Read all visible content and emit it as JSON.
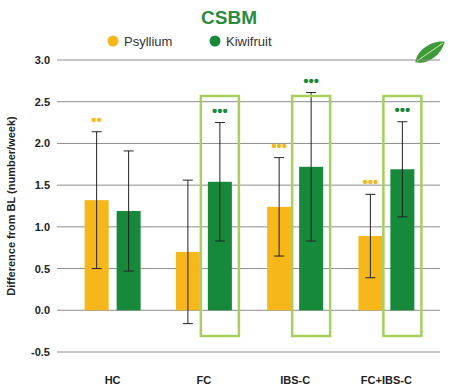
{
  "chart_data": {
    "type": "bar",
    "title": "CSBM",
    "y_label": "Difference from BL (number/week)",
    "categories": [
      "HC",
      "FC",
      "IBS-C",
      "FC+IBS-C"
    ],
    "series": [
      {
        "name": "Psyllium",
        "color": "#f6b71b",
        "values": [
          1.32,
          0.7,
          1.24,
          0.89
        ],
        "errors": [
          0.82,
          0.86,
          0.59,
          0.5
        ],
        "significance": [
          "••",
          null,
          "•••",
          "•••"
        ]
      },
      {
        "name": "Kiwifruit",
        "color": "#17893b",
        "values": [
          1.19,
          1.54,
          1.72,
          1.69
        ],
        "errors": [
          0.72,
          0.71,
          0.89,
          0.57
        ],
        "significance": [
          null,
          "•••",
          "•••",
          "•••"
        ]
      }
    ],
    "ylim": [
      -0.5,
      3.0
    ],
    "yticks": [
      {
        "value": -0.5,
        "label": "-0.5"
      },
      {
        "value": 0,
        "label": "0.0"
      },
      {
        "value": 0.5,
        "label": "0.5"
      },
      {
        "value": 1,
        "label": "1.0"
      },
      {
        "value": 1.5,
        "label": "1.5"
      },
      {
        "value": 2,
        "label": "2.0"
      },
      {
        "value": 2.5,
        "label": "2.5"
      },
      {
        "value": 3,
        "label": "3.0"
      }
    ],
    "grid": true,
    "legend": "top"
  }
}
